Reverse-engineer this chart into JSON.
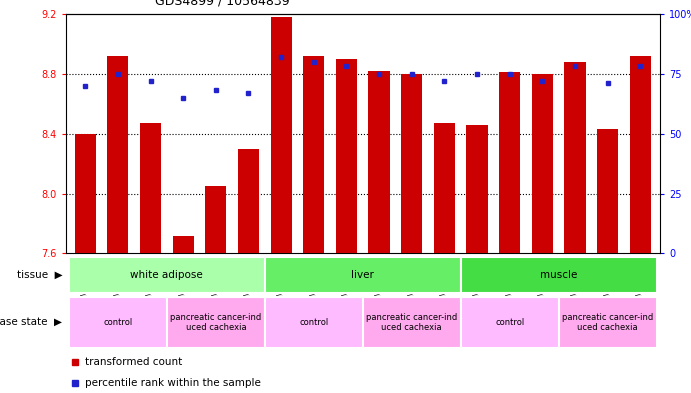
{
  "title": "GDS4899 / 10564839",
  "samples": [
    "GSM1255438",
    "GSM1255439",
    "GSM1255441",
    "GSM1255437",
    "GSM1255440",
    "GSM1255442",
    "GSM1255450",
    "GSM1255451",
    "GSM1255453",
    "GSM1255449",
    "GSM1255452",
    "GSM1255454",
    "GSM1255444",
    "GSM1255445",
    "GSM1255447",
    "GSM1255443",
    "GSM1255446",
    "GSM1255448"
  ],
  "bar_values": [
    8.4,
    8.92,
    8.47,
    7.72,
    8.05,
    8.3,
    9.18,
    8.92,
    8.9,
    8.82,
    8.8,
    8.47,
    8.46,
    8.81,
    8.8,
    8.88,
    8.43,
    8.92
  ],
  "dot_values": [
    70,
    75,
    72,
    65,
    68,
    67,
    82,
    80,
    78,
    75,
    75,
    72,
    75,
    75,
    72,
    78,
    71,
    78
  ],
  "ylim_left": [
    7.6,
    9.2
  ],
  "ylim_right": [
    0,
    100
  ],
  "yticks_left": [
    7.6,
    8.0,
    8.4,
    8.8,
    9.2
  ],
  "yticks_right": [
    0,
    25,
    50,
    75,
    100
  ],
  "bar_color": "#cc0000",
  "dot_color": "#2222cc",
  "tissue_colors": {
    "white adipose": "#aaffaa",
    "liver": "#66ee66",
    "muscle": "#44dd44"
  },
  "tissue_groups": [
    {
      "label": "white adipose",
      "start": 0,
      "end": 5
    },
    {
      "label": "liver",
      "start": 6,
      "end": 11
    },
    {
      "label": "muscle",
      "start": 12,
      "end": 17
    }
  ],
  "disease_groups": [
    {
      "label": "control",
      "start": 0,
      "end": 2,
      "color": "#ffbbff"
    },
    {
      "label": "pancreatic cancer-ind\nuced cachexia",
      "start": 3,
      "end": 5,
      "color": "#ffaaee"
    },
    {
      "label": "control",
      "start": 6,
      "end": 8,
      "color": "#ffbbff"
    },
    {
      "label": "pancreatic cancer-ind\nuced cachexia",
      "start": 9,
      "end": 11,
      "color": "#ffaaee"
    },
    {
      "label": "control",
      "start": 12,
      "end": 14,
      "color": "#ffbbff"
    },
    {
      "label": "pancreatic cancer-ind\nuced cachexia",
      "start": 15,
      "end": 17,
      "color": "#ffaaee"
    }
  ]
}
